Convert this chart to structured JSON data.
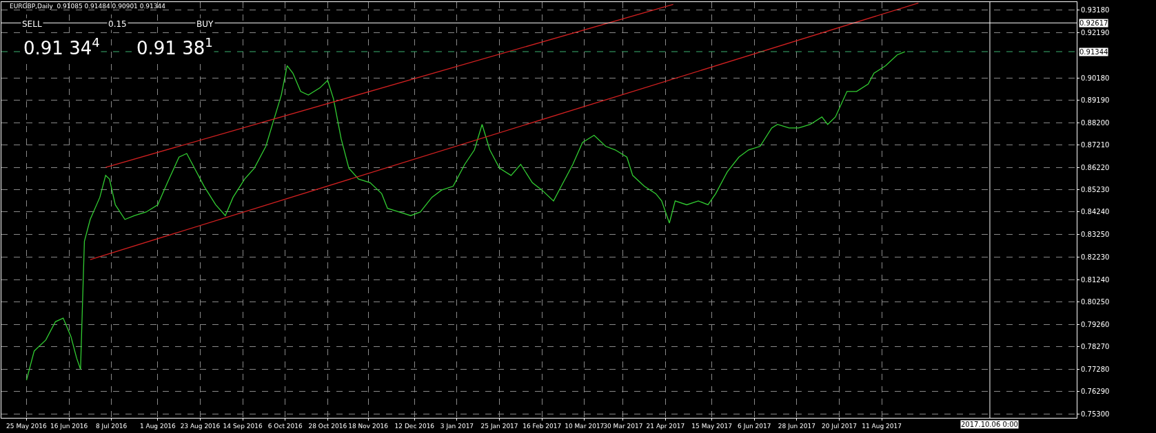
{
  "chart_data": {
    "type": "line",
    "title": "EURGBP,Daily  0.91085 0.91484 0.90901 0.91344",
    "x": [
      "2016-05-25",
      "2016-05-29",
      "2016-06-04",
      "2016-06-09",
      "2016-06-13",
      "2016-06-17",
      "2016-06-20",
      "2016-06-22",
      "2016-06-24",
      "2016-06-27",
      "2016-07-02",
      "2016-07-05",
      "2016-07-07",
      "2016-07-10",
      "2016-07-15",
      "2016-07-20",
      "2016-07-26",
      "2016-08-01",
      "2016-08-06",
      "2016-08-12",
      "2016-08-16",
      "2016-08-19",
      "2016-08-25",
      "2016-08-31",
      "2016-09-05",
      "2016-09-09",
      "2016-09-15",
      "2016-09-20",
      "2016-09-26",
      "2016-09-30",
      "2016-10-04",
      "2016-10-07",
      "2016-10-10",
      "2016-10-14",
      "2016-10-18",
      "2016-10-24",
      "2016-10-28",
      "2016-10-31",
      "2016-11-04",
      "2016-11-08",
      "2016-11-13",
      "2016-11-19",
      "2016-11-25",
      "2016-11-28",
      "2016-12-04",
      "2016-12-10",
      "2016-12-15",
      "2016-12-21",
      "2016-12-26",
      "2017-01-01",
      "2017-01-07",
      "2017-01-12",
      "2017-01-16",
      "2017-01-20",
      "2017-01-25",
      "2017-01-31",
      "2017-02-05",
      "2017-02-11",
      "2017-02-16",
      "2017-02-22",
      "2017-02-26",
      "2017-03-04",
      "2017-03-09",
      "2017-03-15",
      "2017-03-21",
      "2017-03-26",
      "2017-04-01",
      "2017-04-04",
      "2017-04-10",
      "2017-04-16",
      "2017-04-19",
      "2017-04-23",
      "2017-04-26",
      "2017-05-02",
      "2017-05-08",
      "2017-05-13",
      "2017-05-17",
      "2017-05-23",
      "2017-05-29",
      "2017-06-03",
      "2017-06-09",
      "2017-06-15",
      "2017-06-18",
      "2017-06-24",
      "2017-06-29",
      "2017-07-05",
      "2017-07-11",
      "2017-07-14",
      "2017-07-18",
      "2017-07-24",
      "2017-07-29",
      "2017-08-04",
      "2017-08-07",
      "2017-08-13",
      "2017-08-19",
      "2017-08-23"
    ],
    "series": [
      {
        "color": "#32cd32",
        "values": [
          0.7679,
          0.7808,
          0.7857,
          0.7938,
          0.7954,
          0.7873,
          0.7776,
          0.7727,
          0.8294,
          0.8391,
          0.8489,
          0.8586,
          0.857,
          0.8456,
          0.8391,
          0.8408,
          0.8424,
          0.8456,
          0.8554,
          0.8667,
          0.8683,
          0.8635,
          0.8538,
          0.8456,
          0.8408,
          0.8489,
          0.857,
          0.8618,
          0.8715,
          0.8829,
          0.8942,
          0.9072,
          0.9039,
          0.8958,
          0.8942,
          0.8974,
          0.9007,
          0.8926,
          0.8748,
          0.8618,
          0.857,
          0.8554,
          0.8505,
          0.844,
          0.8424,
          0.8408,
          0.8424,
          0.8489,
          0.8521,
          0.8538,
          0.8635,
          0.8699,
          0.8812,
          0.8699,
          0.8618,
          0.8586,
          0.8635,
          0.8554,
          0.8521,
          0.8473,
          0.8538,
          0.8635,
          0.8732,
          0.8764,
          0.8715,
          0.8699,
          0.8667,
          0.8586,
          0.8538,
          0.8505,
          0.8473,
          0.8375,
          0.8473,
          0.8456,
          0.8473,
          0.8456,
          0.8505,
          0.8602,
          0.8667,
          0.8699,
          0.8715,
          0.8796,
          0.8812,
          0.8796,
          0.8796,
          0.8812,
          0.8845,
          0.8812,
          0.8845,
          0.8958,
          0.8958,
          0.8991,
          0.9039,
          0.9072,
          0.912,
          0.9134
        ]
      },
      {
        "type": "line",
        "color": "#d02020",
        "x": [
          "2016-07-05",
          "2017-04-25"
        ],
        "values": [
          0.8622,
          0.9344
        ]
      },
      {
        "type": "line",
        "color": "#d02020",
        "x": [
          "2016-06-27",
          "2017-08-30"
        ],
        "values": [
          0.8213,
          0.935
        ]
      }
    ],
    "xlim": [
      "2016-05-12",
      "2017-11-20"
    ],
    "xticks": [
      {
        "value": "2016-05-25",
        "label": "25 May 2016"
      },
      {
        "value": "2016-06-16",
        "label": "16 Jun 2016"
      },
      {
        "value": "2016-07-08",
        "label": "8 Jul 2016"
      },
      {
        "value": "2016-08-01",
        "label": "1 Aug 2016"
      },
      {
        "value": "2016-08-23",
        "label": "23 Aug 2016"
      },
      {
        "value": "2016-09-14",
        "label": "14 Sep 2016"
      },
      {
        "value": "2016-10-06",
        "label": "6 Oct 2016"
      },
      {
        "value": "2016-10-28",
        "label": "28 Oct 2016"
      },
      {
        "value": "2016-11-18",
        "label": "18 Nov 2016"
      },
      {
        "value": "2016-12-12",
        "label": "12 Dec 2016"
      },
      {
        "value": "2017-01-03",
        "label": "3 Jan 2017"
      },
      {
        "value": "2017-01-25",
        "label": "25 Jan 2017"
      },
      {
        "value": "2017-02-16",
        "label": "16 Feb 2017"
      },
      {
        "value": "2017-03-10",
        "label": "10 Mar 2017"
      },
      {
        "value": "2017-03-30",
        "label": "30 Mar 2017"
      },
      {
        "value": "2017-04-21",
        "label": "21 Apr 2017"
      },
      {
        "value": "2017-05-15",
        "label": "15 May 2017"
      },
      {
        "value": "2017-06-06",
        "label": "6 Jun 2017"
      },
      {
        "value": "2017-06-28",
        "label": "28 Jun 2017"
      },
      {
        "value": "2017-07-20",
        "label": "20 Jul 2017"
      },
      {
        "value": "2017-08-11",
        "label": "11 Aug 2017"
      }
    ],
    "ylim": [
      0.7512,
      0.9354
    ],
    "yticks": [
      {
        "value": 0.9318,
        "label": "0.93180"
      },
      {
        "value": 0.9219,
        "label": "0.92190"
      },
      {
        "value": 0.9018,
        "label": "0.90180"
      },
      {
        "value": 0.8919,
        "label": "0.89190"
      },
      {
        "value": 0.882,
        "label": "0.88200"
      },
      {
        "value": 0.8721,
        "label": "0.87210"
      },
      {
        "value": 0.8622,
        "label": "0.86220"
      },
      {
        "value": 0.8523,
        "label": "0.85230"
      },
      {
        "value": 0.8424,
        "label": "0.84240"
      },
      {
        "value": 0.8325,
        "label": "0.83250"
      },
      {
        "value": 0.8223,
        "label": "0.82230"
      },
      {
        "value": 0.8124,
        "label": "0.81240"
      },
      {
        "value": 0.8025,
        "label": "0.80250"
      },
      {
        "value": 0.7926,
        "label": "0.79260"
      },
      {
        "value": 0.7827,
        "label": "0.78270"
      },
      {
        "value": 0.7728,
        "label": "0.77280"
      },
      {
        "value": 0.7629,
        "label": "0.76290"
      },
      {
        "value": 0.753,
        "label": "0.75300"
      }
    ],
    "ref_lines": [
      {
        "axis": "y",
        "value": 0.91344,
        "label": "0.91344",
        "color": "#3cb371",
        "line_style": "dashed"
      },
      {
        "axis": "y",
        "value": 0.92617,
        "label": "0.92617",
        "color": "#ffffff",
        "line_style": "solid"
      },
      {
        "axis": "x",
        "value": "2017-10-06",
        "label": "2017.10.06 0:00",
        "color": "#ffffff",
        "line_style": "solid"
      }
    ],
    "annotations": [
      "SELL",
      "0.15",
      "BUY",
      "0.91 34$^{4}$",
      "0.91 38$^{1}$"
    ],
    "grid": true,
    "marker": "none",
    "line_style": "solid"
  }
}
